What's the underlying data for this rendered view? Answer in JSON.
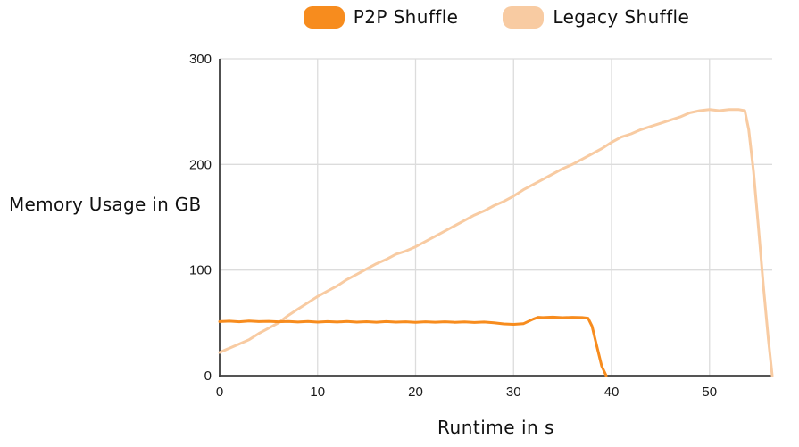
{
  "colors": {
    "p2p": "#F78C1E",
    "legacy": "#F8CBA2",
    "axis": "#3d3d3d",
    "grid": "#dcdcdc",
    "text": "#111111"
  },
  "chart_data": {
    "type": "line",
    "title": "",
    "xlabel": "Runtime in s",
    "ylabel": "Memory Usage in GB",
    "xlim": [
      0,
      56.4
    ],
    "ylim": [
      0,
      300
    ],
    "xticks": [
      0,
      10,
      20,
      30,
      40,
      50
    ],
    "yticks": [
      0,
      100,
      200,
      300
    ],
    "grid": true,
    "legend_position": "top-center",
    "series": [
      {
        "name": "Legacy Shuffle",
        "color": "#F8CBA2",
        "points": [
          [
            0,
            22
          ],
          [
            1,
            26
          ],
          [
            2,
            30
          ],
          [
            3,
            34
          ],
          [
            4,
            40
          ],
          [
            5,
            45
          ],
          [
            6,
            50
          ],
          [
            7,
            57
          ],
          [
            8,
            63
          ],
          [
            9,
            69
          ],
          [
            10,
            75
          ],
          [
            11,
            80
          ],
          [
            12,
            85
          ],
          [
            13,
            91
          ],
          [
            14,
            96
          ],
          [
            15,
            101
          ],
          [
            16,
            106
          ],
          [
            17,
            110
          ],
          [
            18,
            115
          ],
          [
            19,
            118
          ],
          [
            20,
            122
          ],
          [
            21,
            127
          ],
          [
            22,
            132
          ],
          [
            23,
            137
          ],
          [
            24,
            142
          ],
          [
            25,
            147
          ],
          [
            26,
            152
          ],
          [
            27,
            156
          ],
          [
            28,
            161
          ],
          [
            29,
            165
          ],
          [
            30,
            170
          ],
          [
            31,
            176
          ],
          [
            32,
            181
          ],
          [
            33,
            186
          ],
          [
            34,
            191
          ],
          [
            35,
            196
          ],
          [
            36,
            200
          ],
          [
            37,
            205
          ],
          [
            38,
            210
          ],
          [
            39,
            215
          ],
          [
            40,
            221
          ],
          [
            41,
            226
          ],
          [
            42,
            229
          ],
          [
            43,
            233
          ],
          [
            44,
            236
          ],
          [
            45,
            239
          ],
          [
            46,
            242
          ],
          [
            47,
            245
          ],
          [
            48,
            249
          ],
          [
            49,
            251
          ],
          [
            50,
            252
          ],
          [
            51,
            251
          ],
          [
            52,
            252
          ],
          [
            53,
            252
          ],
          [
            53.6,
            251
          ],
          [
            54,
            233
          ],
          [
            54.5,
            193
          ],
          [
            55,
            140
          ],
          [
            55.5,
            85
          ],
          [
            56,
            35
          ],
          [
            56.4,
            0
          ]
        ]
      },
      {
        "name": "P2P Shuffle",
        "color": "#F78C1E",
        "points": [
          [
            0,
            51.2
          ],
          [
            1,
            51.6
          ],
          [
            2,
            51.0
          ],
          [
            3,
            51.8
          ],
          [
            4,
            51.2
          ],
          [
            5,
            51.5
          ],
          [
            6,
            51.0
          ],
          [
            7,
            51.4
          ],
          [
            8,
            50.8
          ],
          [
            9,
            51.3
          ],
          [
            10,
            50.7
          ],
          [
            11,
            51.2
          ],
          [
            12,
            50.8
          ],
          [
            13,
            51.3
          ],
          [
            14,
            50.7
          ],
          [
            15,
            51.1
          ],
          [
            16,
            50.6
          ],
          [
            17,
            51.2
          ],
          [
            18,
            50.7
          ],
          [
            19,
            51.0
          ],
          [
            20,
            50.5
          ],
          [
            21,
            51.0
          ],
          [
            22,
            50.6
          ],
          [
            23,
            51.0
          ],
          [
            24,
            50.5
          ],
          [
            25,
            50.9
          ],
          [
            26,
            50.4
          ],
          [
            27,
            50.8
          ],
          [
            28,
            50.0
          ],
          [
            29,
            49.0
          ],
          [
            30,
            48.6
          ],
          [
            31,
            49.2
          ],
          [
            32,
            53.5
          ],
          [
            32.5,
            55.3
          ],
          [
            33,
            55.0
          ],
          [
            34,
            55.4
          ],
          [
            35,
            54.9
          ],
          [
            36,
            55.3
          ],
          [
            37,
            55.0
          ],
          [
            37.6,
            54.4
          ],
          [
            38,
            47
          ],
          [
            38.5,
            28
          ],
          [
            39,
            9
          ],
          [
            39.45,
            0
          ]
        ]
      }
    ]
  },
  "legend": {
    "p2p_label": "P2P Shuffle",
    "legacy_label": "Legacy Shuffle"
  }
}
